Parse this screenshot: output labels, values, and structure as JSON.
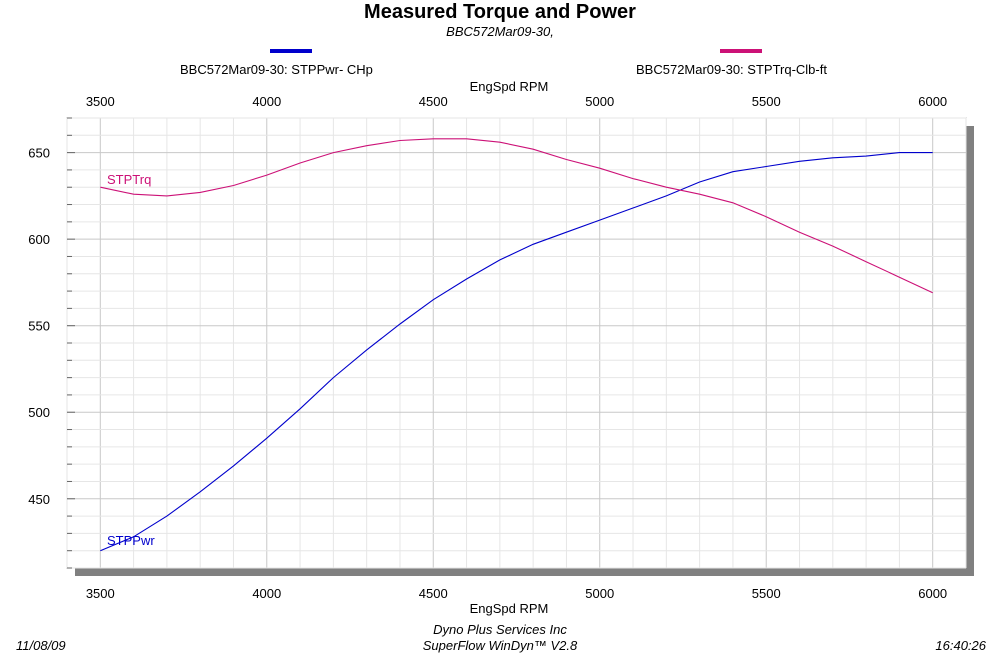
{
  "header": {
    "title": "Measured Torque and Power",
    "subtitle": "BBC572Mar09-30,"
  },
  "legend": [
    {
      "label": "BBC572Mar09-30: STPPwr- CHp",
      "color": "#0000cc"
    },
    {
      "label": "BBC572Mar09-30: STPTrq-Clb-ft",
      "color": "#cc1177"
    }
  ],
  "footer": {
    "date": "11/08/09",
    "company": "Dyno Plus Services Inc",
    "software": "SuperFlow WinDyn™ V2.8",
    "time": "16:40:26"
  },
  "chart_data": {
    "type": "line",
    "xlabel": "EngSpd  RPM",
    "ylabel": "",
    "xlim": [
      3400,
      6100
    ],
    "ylim": [
      410,
      670
    ],
    "xticks": [
      3500,
      4000,
      4500,
      5000,
      5500,
      6000
    ],
    "yticks": [
      450,
      500,
      550,
      600,
      650
    ],
    "grid": true,
    "series": [
      {
        "name": "STPPwr",
        "color": "#0000cc",
        "x": [
          3500,
          3600,
          3700,
          3800,
          3900,
          4000,
          4100,
          4200,
          4300,
          4400,
          4500,
          4600,
          4700,
          4800,
          4900,
          5000,
          5100,
          5200,
          5300,
          5400,
          5500,
          5600,
          5700,
          5800,
          5900,
          6000
        ],
        "y": [
          420,
          428,
          440,
          454,
          469,
          485,
          502,
          520,
          536,
          551,
          565,
          577,
          588,
          597,
          604,
          611,
          618,
          625,
          633,
          639,
          642,
          645,
          647,
          648,
          650,
          650
        ]
      },
      {
        "name": "STPTrq",
        "color": "#cc1177",
        "x": [
          3500,
          3600,
          3700,
          3800,
          3900,
          4000,
          4100,
          4200,
          4300,
          4400,
          4500,
          4600,
          4700,
          4800,
          4900,
          5000,
          5100,
          5200,
          5300,
          5400,
          5500,
          5600,
          5700,
          5800,
          5900,
          6000
        ],
        "y": [
          630,
          626,
          625,
          627,
          631,
          637,
          644,
          650,
          654,
          657,
          658,
          658,
          656,
          652,
          646,
          641,
          635,
          630,
          626,
          621,
          613,
          604,
          596,
          587,
          578,
          569
        ]
      }
    ]
  }
}
